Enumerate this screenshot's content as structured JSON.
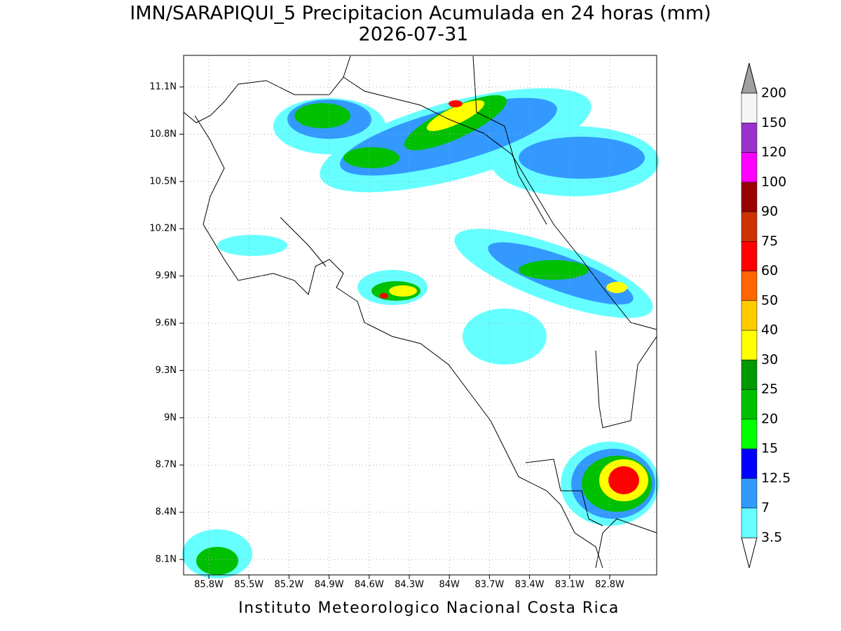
{
  "map": {
    "title": "IMN/SARAPIQUI_5 Precipitacion Acumulada en 24 horas (mm)",
    "subtitle": "2026-07-31",
    "lat_ticks": [
      "11.1N",
      "10.8N",
      "10.5N",
      "10.2N",
      "9.9N",
      "9.6N",
      "9.3N",
      "9N",
      "8.7N",
      "8.4N",
      "8.1N"
    ],
    "lon_ticks": [
      "85.8W",
      "85.5W",
      "85.2W",
      "84.9W",
      "84.6W",
      "84.3W",
      "84W",
      "83.7W",
      "83.4W",
      "83.1W",
      "82.8W"
    ],
    "colorbar": {
      "levels": [
        "200",
        "150",
        "120",
        "100",
        "90",
        "75",
        "60",
        "50",
        "40",
        "30",
        "25",
        "20",
        "15",
        "12.5",
        "7",
        "3.5"
      ],
      "colors": [
        "#f5f5f5",
        "#9933cc",
        "#ff00ff",
        "#990000",
        "#cc3300",
        "#ff0000",
        "#ff6600",
        "#ffcc00",
        "#ffff00",
        "#009900",
        "#00c000",
        "#00ff00",
        "#0000ff",
        "#3399ff",
        "#66ffff"
      ]
    },
    "footer": "Instituto Meteorologico Nacional Costa Rica"
  }
}
